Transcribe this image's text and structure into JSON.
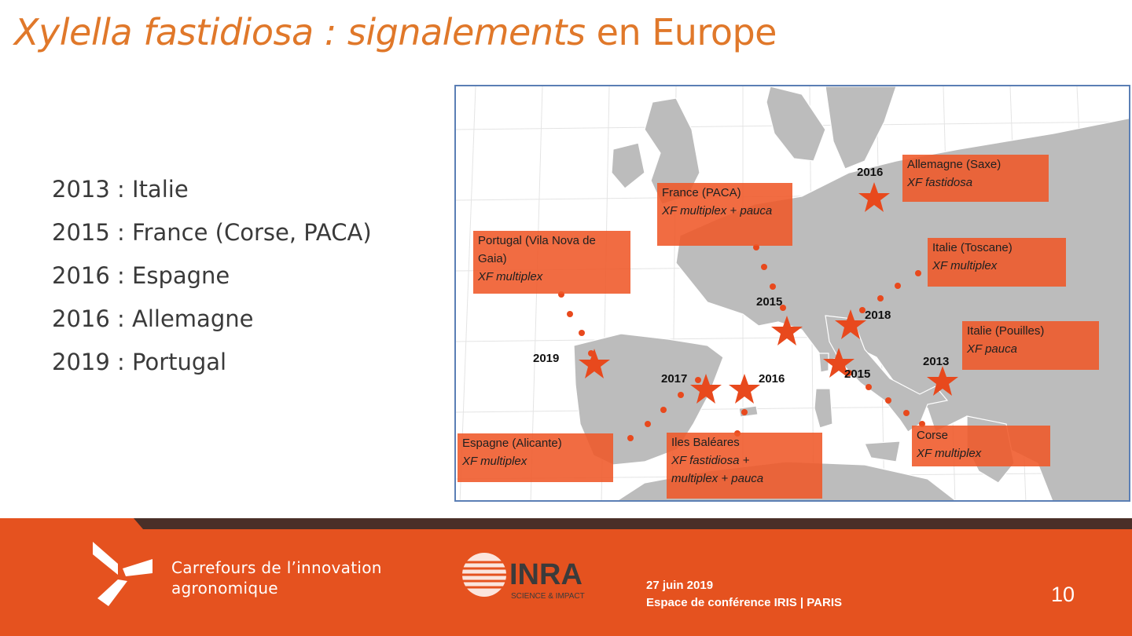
{
  "slide": {
    "title_italic": "Xylella fastidiosa : signalements",
    "title_rest": " en Europe",
    "bullets": [
      "2013 : Italie",
      "2015 : France (Corse, PACA)",
      "2016 : Espagne",
      "2016 : Allemagne",
      "2019 : Portugal"
    ]
  },
  "map": {
    "callouts": [
      {
        "place": "France (PACA)",
        "variant": "XF multiplex + pauca"
      },
      {
        "place": "Allemagne (Saxe)",
        "variant": "XF fastidosa"
      },
      {
        "place": "Portugal (Vila Nova de",
        "place2": "Gaia)",
        "variant": "XF multiplex"
      },
      {
        "place": "Italie (Toscane)",
        "variant": "XF multiplex"
      },
      {
        "place": "Italie (Pouilles)",
        "variant": "XF pauca"
      },
      {
        "place": "Espagne (Alicante)",
        "variant": "XF multiplex"
      },
      {
        "place": "Iles Baléares",
        "variant": "XF fastidiosa +",
        "variant2": "multiplex + pauca"
      },
      {
        "place": "Corse",
        "variant": "XF multiplex"
      }
    ],
    "year_labels": {
      "germany": "2016",
      "paca": "2015",
      "tuscany": "2018",
      "portugal": "2019",
      "alicante": "2017",
      "balearics": "2016",
      "corsica": "2015",
      "apulia": "2013"
    },
    "colors": {
      "marker": "#e8491d",
      "land": "#bdbdbd",
      "border": "#5b7fb5"
    }
  },
  "footer": {
    "brand_line1": "Carrefours de l’innovation",
    "brand_line2": "agronomique",
    "inra": "INRA",
    "inra_tag": "SCIENCE & IMPACT",
    "date": "27 juin 2019",
    "venue": "Espace de conférence IRIS | PARIS",
    "page": "10"
  }
}
